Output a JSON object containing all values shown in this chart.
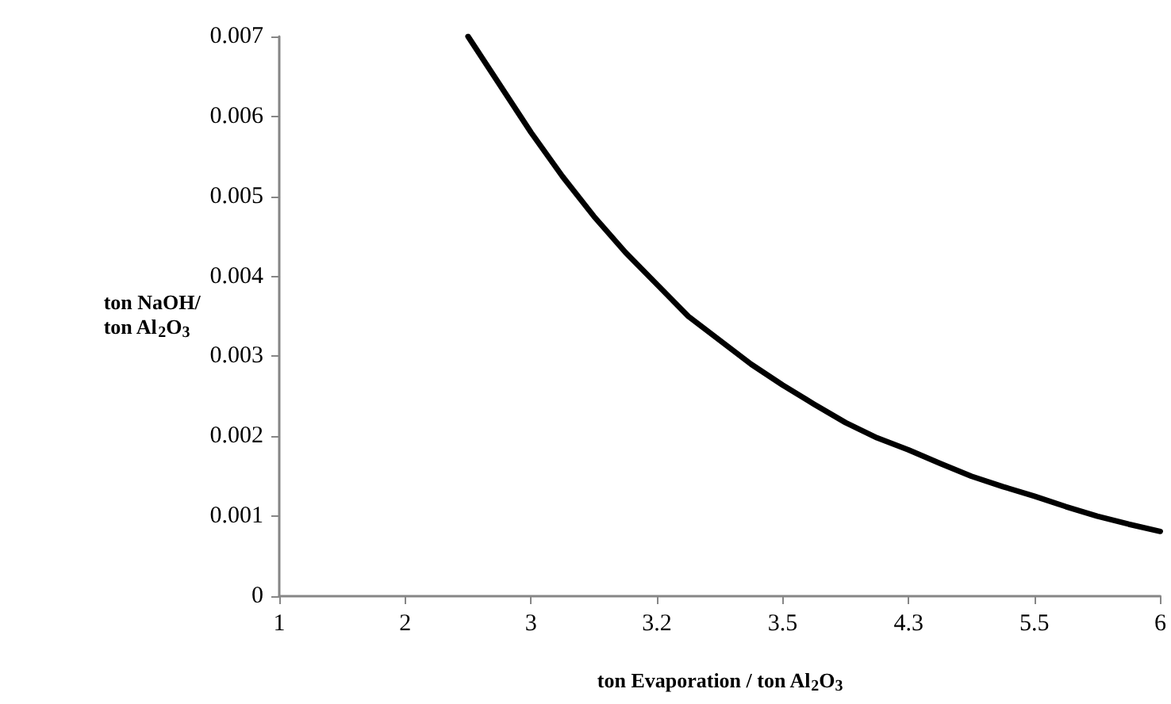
{
  "chart_data": {
    "type": "line",
    "xlabel": "ton Evaporation / ton Al$_{2}$O$_{3}$",
    "ylabel": "ton NaOH/\nton Al$_{2}$O$_{3}$",
    "categories": [
      "1",
      null,
      null,
      null,
      "2",
      null,
      null,
      null,
      "3",
      null,
      null,
      null,
      "3.2",
      null,
      null,
      null,
      "3.5",
      null,
      null,
      null,
      "4.3",
      null,
      null,
      null,
      "5.5",
      null,
      null,
      null,
      "6"
    ],
    "series": [
      {
        "color": "#000000",
        "values": [
          null,
          null,
          null,
          null,
          null,
          null,
          0.007,
          0.0064,
          0.0058,
          0.00525,
          0.00475,
          0.0043,
          0.0039,
          0.0035,
          0.0032,
          0.0029,
          0.00264,
          0.0024,
          0.00217,
          0.00198,
          0.00183,
          0.00166,
          0.0015,
          0.00137,
          0.00125,
          0.00112,
          0.001,
          0.0009,
          0.00081
        ]
      }
    ],
    "ylim": [
      0,
      0.007
    ],
    "yticks": [
      0,
      0.001,
      0.002,
      0.003,
      0.004,
      0.005,
      0.006,
      0.007
    ],
    "grid": false,
    "marker": "none",
    "line_style": "solid"
  }
}
